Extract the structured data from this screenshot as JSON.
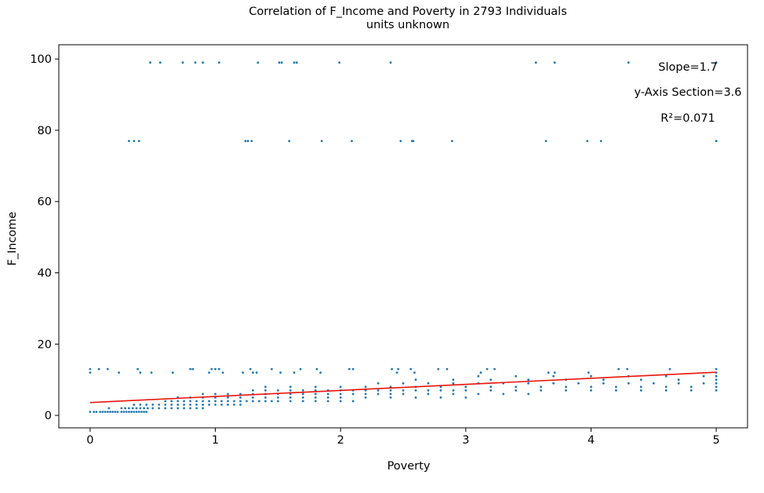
{
  "chart_data": {
    "type": "scatter",
    "title": "Correlation of F_Income and Poverty in 2793 Individuals",
    "subtitle": "units unknown",
    "xlabel": "Poverty",
    "ylabel": "F_Income",
    "xlim": [
      -0.25,
      5.25
    ],
    "ylim": [
      -3.5,
      104
    ],
    "xticks": [
      0,
      1,
      2,
      3,
      4,
      5
    ],
    "yticks": [
      0,
      20,
      40,
      60,
      80,
      100
    ],
    "grid": false,
    "colors": {
      "points": "#1f77b4",
      "fit": "#e8150c"
    },
    "annotations": {
      "slope": "Slope=1.7",
      "intercept": "y-Axis Section=3.6",
      "r2": "R²=0.071"
    },
    "fit_line": {
      "slope": 1.7,
      "intercept": 3.6,
      "x": [
        0,
        5
      ]
    },
    "series": [
      {
        "points": [
          [
            0.48,
            99
          ],
          [
            0.56,
            99
          ],
          [
            0.74,
            99
          ],
          [
            0.84,
            99
          ],
          [
            0.9,
            99
          ],
          [
            1.03,
            99
          ],
          [
            1.34,
            99
          ],
          [
            1.51,
            99
          ],
          [
            1.53,
            99
          ],
          [
            1.63,
            99
          ],
          [
            1.65,
            99
          ],
          [
            1.99,
            99
          ],
          [
            2.4,
            99
          ],
          [
            3.56,
            99
          ],
          [
            3.71,
            99
          ],
          [
            4.3,
            99
          ],
          [
            5.0,
            99
          ],
          [
            5.0,
            99
          ],
          [
            0.31,
            77
          ],
          [
            0.35,
            77
          ],
          [
            0.39,
            77
          ],
          [
            1.24,
            77
          ],
          [
            1.26,
            77
          ],
          [
            1.29,
            77
          ],
          [
            1.59,
            77
          ],
          [
            1.85,
            77
          ],
          [
            2.09,
            77
          ],
          [
            2.48,
            77
          ],
          [
            2.57,
            77
          ],
          [
            2.58,
            77
          ],
          [
            2.89,
            77
          ],
          [
            3.64,
            77
          ],
          [
            3.97,
            77
          ],
          [
            4.08,
            77
          ],
          [
            5.0,
            77
          ],
          [
            5.0,
            77
          ],
          [
            0.0,
            13
          ],
          [
            0.0,
            12
          ],
          [
            0.07,
            13
          ],
          [
            0.14,
            13
          ],
          [
            0.23,
            12
          ],
          [
            0.38,
            13
          ],
          [
            0.4,
            12
          ],
          [
            0.49,
            12
          ],
          [
            0.66,
            12
          ],
          [
            0.8,
            13
          ],
          [
            0.82,
            13
          ],
          [
            0.95,
            12
          ],
          [
            0.97,
            13
          ],
          [
            1.0,
            13
          ],
          [
            1.03,
            13
          ],
          [
            1.06,
            12
          ],
          [
            1.22,
            12
          ],
          [
            1.28,
            13
          ],
          [
            1.3,
            12
          ],
          [
            1.33,
            12
          ],
          [
            1.45,
            13
          ],
          [
            1.52,
            12
          ],
          [
            1.63,
            12
          ],
          [
            1.68,
            13
          ],
          [
            1.81,
            13
          ],
          [
            1.84,
            12
          ],
          [
            2.07,
            13
          ],
          [
            2.1,
            13
          ],
          [
            2.41,
            13
          ],
          [
            2.45,
            12
          ],
          [
            2.46,
            13
          ],
          [
            2.56,
            13
          ],
          [
            2.59,
            12
          ],
          [
            2.78,
            13
          ],
          [
            2.85,
            13
          ],
          [
            3.12,
            12
          ],
          [
            3.17,
            13
          ],
          [
            3.23,
            13
          ],
          [
            3.66,
            12
          ],
          [
            3.71,
            12
          ],
          [
            3.98,
            12
          ],
          [
            4.22,
            13
          ],
          [
            4.29,
            13
          ],
          [
            4.63,
            13
          ],
          [
            5.0,
            13
          ],
          [
            5.0,
            12
          ],
          [
            0.0,
            1
          ],
          [
            0.03,
            1
          ],
          [
            0.05,
            1
          ],
          [
            0.08,
            1
          ],
          [
            0.1,
            1
          ],
          [
            0.12,
            1
          ],
          [
            0.14,
            1
          ],
          [
            0.16,
            1
          ],
          [
            0.18,
            1
          ],
          [
            0.2,
            1
          ],
          [
            0.22,
            1
          ],
          [
            0.25,
            1
          ],
          [
            0.27,
            1
          ],
          [
            0.29,
            1
          ],
          [
            0.31,
            1
          ],
          [
            0.33,
            1
          ],
          [
            0.35,
            1
          ],
          [
            0.37,
            1
          ],
          [
            0.39,
            1
          ],
          [
            0.41,
            1
          ],
          [
            0.43,
            1
          ],
          [
            0.45,
            1
          ],
          [
            0.15,
            2
          ],
          [
            0.25,
            2
          ],
          [
            0.28,
            2
          ],
          [
            0.31,
            2
          ],
          [
            0.34,
            2
          ],
          [
            0.37,
            2
          ],
          [
            0.4,
            2
          ],
          [
            0.43,
            2
          ],
          [
            0.46,
            2
          ],
          [
            0.5,
            2
          ],
          [
            0.55,
            2
          ],
          [
            0.6,
            2
          ],
          [
            0.65,
            2
          ],
          [
            0.7,
            2
          ],
          [
            0.75,
            2
          ],
          [
            0.8,
            2
          ],
          [
            0.85,
            2
          ],
          [
            0.9,
            2
          ],
          [
            0.35,
            3
          ],
          [
            0.4,
            3
          ],
          [
            0.45,
            3
          ],
          [
            0.5,
            3
          ],
          [
            0.55,
            3
          ],
          [
            0.6,
            3
          ],
          [
            0.65,
            3
          ],
          [
            0.7,
            3
          ],
          [
            0.75,
            3
          ],
          [
            0.8,
            3
          ],
          [
            0.85,
            3
          ],
          [
            0.9,
            3
          ],
          [
            0.95,
            3
          ],
          [
            1.0,
            3
          ],
          [
            1.05,
            3
          ],
          [
            1.1,
            3
          ],
          [
            1.15,
            3
          ],
          [
            1.2,
            3
          ],
          [
            0.6,
            4
          ],
          [
            0.65,
            4
          ],
          [
            0.7,
            4
          ],
          [
            0.75,
            4
          ],
          [
            0.8,
            4
          ],
          [
            0.85,
            4
          ],
          [
            0.9,
            4
          ],
          [
            0.95,
            4
          ],
          [
            1.0,
            4
          ],
          [
            1.05,
            4
          ],
          [
            1.1,
            4
          ],
          [
            1.15,
            4
          ],
          [
            1.2,
            4
          ],
          [
            1.25,
            4
          ],
          [
            1.3,
            4
          ],
          [
            1.35,
            4
          ],
          [
            1.4,
            4
          ],
          [
            1.45,
            4
          ],
          [
            1.5,
            4
          ],
          [
            1.6,
            4
          ],
          [
            1.7,
            4
          ],
          [
            1.8,
            4
          ],
          [
            1.9,
            4
          ],
          [
            2.0,
            4
          ],
          [
            2.1,
            4
          ],
          [
            0.7,
            5
          ],
          [
            0.8,
            5
          ],
          [
            0.9,
            5
          ],
          [
            1.0,
            5
          ],
          [
            1.1,
            5
          ],
          [
            1.2,
            5
          ],
          [
            1.3,
            5
          ],
          [
            1.4,
            5
          ],
          [
            1.5,
            5
          ],
          [
            1.6,
            5
          ],
          [
            1.7,
            5
          ],
          [
            1.8,
            5
          ],
          [
            1.9,
            5
          ],
          [
            2.0,
            5
          ],
          [
            2.2,
            5
          ],
          [
            2.4,
            5
          ],
          [
            2.6,
            5
          ],
          [
            2.8,
            5
          ],
          [
            3.0,
            5
          ],
          [
            0.9,
            6
          ],
          [
            1.0,
            6
          ],
          [
            1.1,
            6
          ],
          [
            1.2,
            6
          ],
          [
            1.3,
            6
          ],
          [
            1.4,
            6
          ],
          [
            1.5,
            6
          ],
          [
            1.6,
            6
          ],
          [
            1.7,
            6
          ],
          [
            1.8,
            6
          ],
          [
            1.9,
            6
          ],
          [
            2.0,
            6
          ],
          [
            2.1,
            6
          ],
          [
            2.2,
            6
          ],
          [
            2.3,
            6
          ],
          [
            2.4,
            6
          ],
          [
            2.5,
            6
          ],
          [
            2.7,
            6
          ],
          [
            2.9,
            6
          ],
          [
            3.1,
            6
          ],
          [
            3.3,
            6
          ],
          [
            3.5,
            6
          ],
          [
            1.3,
            7
          ],
          [
            1.4,
            7
          ],
          [
            1.5,
            7
          ],
          [
            1.6,
            7
          ],
          [
            1.7,
            7
          ],
          [
            1.8,
            7
          ],
          [
            1.9,
            7
          ],
          [
            2.0,
            7
          ],
          [
            2.1,
            7
          ],
          [
            2.2,
            7
          ],
          [
            2.3,
            7
          ],
          [
            2.4,
            7
          ],
          [
            2.5,
            7
          ],
          [
            2.6,
            7
          ],
          [
            2.7,
            7
          ],
          [
            2.8,
            7
          ],
          [
            2.9,
            7
          ],
          [
            3.0,
            7
          ],
          [
            3.2,
            7
          ],
          [
            3.4,
            7
          ],
          [
            3.6,
            7
          ],
          [
            3.8,
            7
          ],
          [
            4.0,
            7
          ],
          [
            4.2,
            7
          ],
          [
            4.4,
            7
          ],
          [
            4.6,
            7
          ],
          [
            4.8,
            7
          ],
          [
            5.0,
            7
          ],
          [
            1.4,
            8
          ],
          [
            1.6,
            8
          ],
          [
            1.8,
            8
          ],
          [
            2.0,
            8
          ],
          [
            2.2,
            8
          ],
          [
            2.4,
            8
          ],
          [
            2.6,
            8
          ],
          [
            2.8,
            8
          ],
          [
            3.0,
            8
          ],
          [
            3.2,
            8
          ],
          [
            3.4,
            8
          ],
          [
            3.6,
            8
          ],
          [
            3.8,
            8
          ],
          [
            4.0,
            8
          ],
          [
            4.2,
            8
          ],
          [
            4.4,
            8
          ],
          [
            4.6,
            8
          ],
          [
            4.8,
            8
          ],
          [
            5.0,
            8
          ],
          [
            2.3,
            9
          ],
          [
            2.5,
            9
          ],
          [
            2.7,
            9
          ],
          [
            2.9,
            9
          ],
          [
            3.1,
            9
          ],
          [
            3.3,
            9
          ],
          [
            3.5,
            9
          ],
          [
            3.7,
            9
          ],
          [
            3.9,
            9
          ],
          [
            4.1,
            9
          ],
          [
            4.3,
            9
          ],
          [
            4.5,
            9
          ],
          [
            4.7,
            9
          ],
          [
            4.9,
            9
          ],
          [
            5.0,
            9
          ],
          [
            2.6,
            10
          ],
          [
            2.9,
            10
          ],
          [
            3.2,
            10
          ],
          [
            3.5,
            10
          ],
          [
            3.8,
            10
          ],
          [
            4.1,
            10
          ],
          [
            4.4,
            10
          ],
          [
            4.7,
            10
          ],
          [
            5.0,
            10
          ],
          [
            3.1,
            11
          ],
          [
            3.4,
            11
          ],
          [
            3.7,
            11
          ],
          [
            4.0,
            11
          ],
          [
            4.3,
            11
          ],
          [
            4.6,
            11
          ],
          [
            4.9,
            11
          ],
          [
            5.0,
            11
          ]
        ]
      }
    ]
  }
}
